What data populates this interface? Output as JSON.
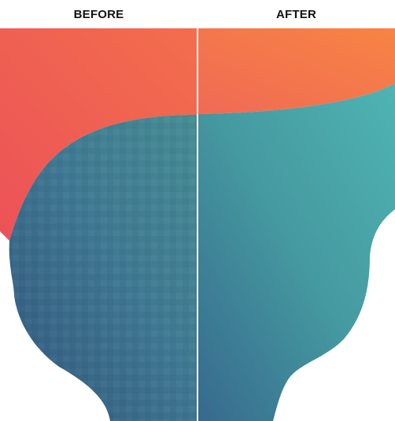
{
  "labels": {
    "before": "BEFORE",
    "after": "AFTER"
  },
  "colors": {
    "coral_top": "#f06a55",
    "coral_right": "#f58245",
    "teal_light": "#4eb1b1",
    "teal_mid": "#449499",
    "navy_blue": "#356089",
    "background": "#ffffff"
  }
}
